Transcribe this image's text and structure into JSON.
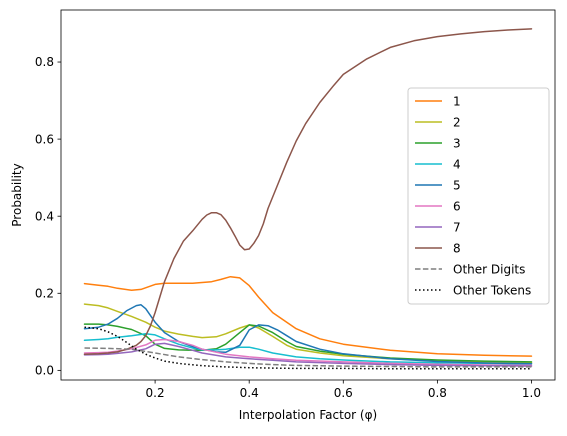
{
  "chart_data": {
    "type": "line",
    "xlabel": "Interpolation Factor (φ)",
    "ylabel": "Probability",
    "xlim": [
      0.0,
      1.05
    ],
    "ylim": [
      -0.025,
      0.935
    ],
    "xticks": [
      0.2,
      0.4,
      0.6,
      0.8,
      1.0
    ],
    "xtick_labels": [
      "0.2",
      "0.4",
      "0.6",
      "0.8",
      "1.0"
    ],
    "yticks": [
      0.0,
      0.2,
      0.4,
      0.6,
      0.8
    ],
    "ytick_labels": [
      "0.0",
      "0.2",
      "0.4",
      "0.6",
      "0.8"
    ],
    "grid": false,
    "legend_position": "center-right",
    "series": [
      {
        "name": "1",
        "color": "#ff7f0e",
        "dash": "solid",
        "x": [
          0.05,
          0.08,
          0.1,
          0.12,
          0.15,
          0.17,
          0.2,
          0.22,
          0.25,
          0.28,
          0.3,
          0.32,
          0.34,
          0.36,
          0.38,
          0.4,
          0.42,
          0.45,
          0.5,
          0.55,
          0.6,
          0.7,
          0.8,
          0.9,
          1.0
        ],
        "y": [
          0.225,
          0.221,
          0.218,
          0.213,
          0.208,
          0.21,
          0.223,
          0.226,
          0.226,
          0.226,
          0.228,
          0.23,
          0.236,
          0.243,
          0.24,
          0.22,
          0.19,
          0.15,
          0.108,
          0.082,
          0.068,
          0.052,
          0.043,
          0.039,
          0.037
        ]
      },
      {
        "name": "2",
        "color": "#bcbd22",
        "dash": "solid",
        "x": [
          0.05,
          0.08,
          0.1,
          0.12,
          0.15,
          0.18,
          0.2,
          0.22,
          0.25,
          0.28,
          0.3,
          0.33,
          0.35,
          0.38,
          0.4,
          0.42,
          0.45,
          0.48,
          0.5,
          0.55,
          0.6,
          0.7,
          0.8,
          0.9,
          1.0
        ],
        "y": [
          0.172,
          0.168,
          0.162,
          0.153,
          0.14,
          0.125,
          0.112,
          0.102,
          0.094,
          0.088,
          0.085,
          0.087,
          0.095,
          0.11,
          0.118,
          0.11,
          0.088,
          0.065,
          0.055,
          0.045,
          0.038,
          0.03,
          0.025,
          0.022,
          0.02
        ]
      },
      {
        "name": "3",
        "color": "#2ca02c",
        "dash": "solid",
        "x": [
          0.05,
          0.08,
          0.1,
          0.12,
          0.15,
          0.18,
          0.2,
          0.22,
          0.25,
          0.28,
          0.3,
          0.33,
          0.35,
          0.38,
          0.4,
          0.42,
          0.45,
          0.48,
          0.5,
          0.55,
          0.6,
          0.7,
          0.8,
          0.9,
          1.0
        ],
        "y": [
          0.12,
          0.12,
          0.118,
          0.114,
          0.106,
          0.09,
          0.068,
          0.057,
          0.053,
          0.052,
          0.052,
          0.056,
          0.068,
          0.098,
          0.118,
          0.115,
          0.098,
          0.075,
          0.062,
          0.05,
          0.042,
          0.032,
          0.027,
          0.024,
          0.022
        ]
      },
      {
        "name": "4",
        "color": "#17becf",
        "dash": "solid",
        "x": [
          0.05,
          0.08,
          0.1,
          0.12,
          0.15,
          0.18,
          0.2,
          0.22,
          0.25,
          0.28,
          0.3,
          0.33,
          0.35,
          0.38,
          0.4,
          0.42,
          0.45,
          0.5,
          0.55,
          0.6,
          0.7,
          0.8,
          0.9,
          1.0
        ],
        "y": [
          0.078,
          0.08,
          0.082,
          0.086,
          0.09,
          0.095,
          0.092,
          0.082,
          0.068,
          0.058,
          0.053,
          0.053,
          0.055,
          0.06,
          0.06,
          0.055,
          0.045,
          0.035,
          0.03,
          0.027,
          0.022,
          0.02,
          0.018,
          0.017
        ]
      },
      {
        "name": "5",
        "color": "#1f77b4",
        "dash": "solid",
        "x": [
          0.05,
          0.08,
          0.1,
          0.12,
          0.14,
          0.16,
          0.17,
          0.18,
          0.2,
          0.22,
          0.25,
          0.28,
          0.3,
          0.33,
          0.35,
          0.38,
          0.4,
          0.42,
          0.44,
          0.46,
          0.48,
          0.5,
          0.55,
          0.6,
          0.7,
          0.8,
          0.9,
          1.0
        ],
        "y": [
          0.108,
          0.112,
          0.12,
          0.135,
          0.155,
          0.168,
          0.17,
          0.16,
          0.125,
          0.098,
          0.075,
          0.062,
          0.055,
          0.048,
          0.047,
          0.065,
          0.105,
          0.118,
          0.116,
          0.105,
          0.09,
          0.075,
          0.055,
          0.043,
          0.03,
          0.023,
          0.019,
          0.017
        ]
      },
      {
        "name": "6",
        "color": "#e377c2",
        "dash": "solid",
        "x": [
          0.05,
          0.08,
          0.1,
          0.12,
          0.15,
          0.18,
          0.2,
          0.22,
          0.25,
          0.28,
          0.3,
          0.35,
          0.4,
          0.45,
          0.5,
          0.6,
          0.7,
          0.8,
          0.9,
          1.0
        ],
        "y": [
          0.045,
          0.046,
          0.047,
          0.05,
          0.056,
          0.066,
          0.078,
          0.08,
          0.075,
          0.065,
          0.055,
          0.042,
          0.035,
          0.03,
          0.026,
          0.022,
          0.018,
          0.016,
          0.014,
          0.013
        ]
      },
      {
        "name": "7",
        "color": "#9467bd",
        "dash": "solid",
        "x": [
          0.05,
          0.08,
          0.1,
          0.12,
          0.15,
          0.18,
          0.2,
          0.22,
          0.25,
          0.28,
          0.3,
          0.35,
          0.4,
          0.45,
          0.5,
          0.6,
          0.7,
          0.8,
          0.9,
          1.0
        ],
        "y": [
          0.04,
          0.041,
          0.042,
          0.044,
          0.048,
          0.056,
          0.068,
          0.07,
          0.062,
          0.052,
          0.045,
          0.035,
          0.03,
          0.026,
          0.022,
          0.018,
          0.015,
          0.013,
          0.012,
          0.011
        ]
      },
      {
        "name": "8",
        "color": "#8c564b",
        "dash": "solid",
        "x": [
          0.05,
          0.08,
          0.1,
          0.12,
          0.14,
          0.16,
          0.17,
          0.18,
          0.19,
          0.2,
          0.21,
          0.22,
          0.24,
          0.26,
          0.28,
          0.3,
          0.31,
          0.32,
          0.33,
          0.34,
          0.35,
          0.36,
          0.37,
          0.38,
          0.39,
          0.4,
          0.41,
          0.42,
          0.43,
          0.44,
          0.46,
          0.48,
          0.5,
          0.52,
          0.55,
          0.58,
          0.6,
          0.65,
          0.7,
          0.75,
          0.8,
          0.85,
          0.9,
          0.95,
          1.0
        ],
        "y": [
          0.042,
          0.043,
          0.045,
          0.048,
          0.055,
          0.065,
          0.075,
          0.09,
          0.115,
          0.15,
          0.19,
          0.23,
          0.29,
          0.335,
          0.362,
          0.392,
          0.403,
          0.409,
          0.409,
          0.404,
          0.39,
          0.37,
          0.348,
          0.325,
          0.313,
          0.315,
          0.33,
          0.35,
          0.38,
          0.42,
          0.48,
          0.54,
          0.595,
          0.64,
          0.695,
          0.74,
          0.768,
          0.808,
          0.838,
          0.855,
          0.866,
          0.873,
          0.879,
          0.883,
          0.886
        ]
      },
      {
        "name": "Other Digits",
        "color": "#7f7f7f",
        "dash": "dashed",
        "x": [
          0.05,
          0.1,
          0.15,
          0.2,
          0.25,
          0.3,
          0.35,
          0.4,
          0.45,
          0.5,
          0.6,
          0.7,
          0.8,
          0.9,
          1.0
        ],
        "y": [
          0.058,
          0.057,
          0.055,
          0.045,
          0.035,
          0.028,
          0.022,
          0.018,
          0.015,
          0.013,
          0.011,
          0.01,
          0.009,
          0.009,
          0.009
        ]
      },
      {
        "name": "Other Tokens",
        "color": "#000000",
        "dash": "dotted",
        "x": [
          0.05,
          0.08,
          0.1,
          0.12,
          0.14,
          0.16,
          0.18,
          0.2,
          0.22,
          0.25,
          0.3,
          0.35,
          0.4,
          0.45,
          0.5,
          0.6,
          0.7,
          0.8,
          0.9,
          1.0
        ],
        "y": [
          0.112,
          0.108,
          0.1,
          0.088,
          0.072,
          0.055,
          0.042,
          0.032,
          0.024,
          0.018,
          0.012,
          0.009,
          0.007,
          0.006,
          0.005,
          0.005,
          0.004,
          0.004,
          0.004,
          0.004
        ]
      }
    ]
  }
}
